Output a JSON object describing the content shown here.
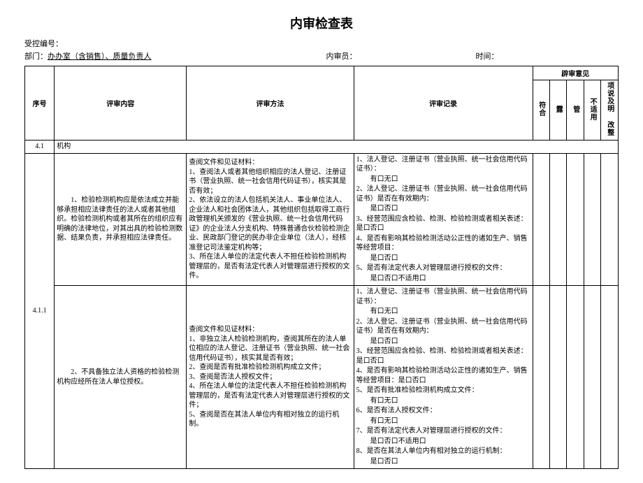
{
  "doc": {
    "title": "内审检查表",
    "control_no_label": "受控编号：",
    "dept_label": "部门：",
    "dept_value": "办办室（含销售）、质量负责人",
    "auditor_label": "内审员：",
    "time_label": "时间："
  },
  "columns": {
    "seq": "序号",
    "content": "评审内容",
    "method": "评审方法",
    "record": "评审记录",
    "opinion_group": "辟审意见",
    "op1": "符合",
    "op2": "露",
    "op3": "管",
    "op4": "不适用",
    "op5": "项说及明 改整"
  },
  "rows": {
    "section": {
      "seq": "4.1",
      "content": "机构"
    },
    "r1": {
      "seq": "4.1.1",
      "content": "　　1、检验检测机构应是依法成立并能够承担相应法律责任的法人或者其他组织。检验检测机构或者其所在的组织应有明确的法律地位，对其出具的检验检测数据、结果负责，并承担相应法律责任。",
      "method": "查阅文件和见证材料：\n1、查阅法人或者其他组织相应的法人登记、注册证书（营业执照、统一社会信用代码证书），核实其是否有效；\n2、依法设立的法人包括机关法人、事业单位法人、企业法人和社会团体法人，其他组织包括取得工商行政管理机关颁发的《营业执照、统一社会信用代码证》的企业法人分支机构、特殊普通合伙检验检测企业、民政部门登记的民办非企业单位（法人），经核准登记司法鉴定机构等；\n3、所在法人单位的法定代表人不担任检验检测机构管理层的，是否有法定代表人对管理层进行授权的文件。",
      "record_lines": [
        "1、法人登记、注册证书（营业执照、统一社会信用代码证书）：",
        "　　有口无口",
        "2、法人登记、注册证书（营业执照、统一社会信用代码证书）是否在有效期内：",
        "　　是口否口",
        "3、经营范围应含检验、检测、检验检测或者相关表述：是口否口",
        "4、是否有影响其检验检测活动公正性的诸如生产、销售等经营项目：",
        "　　是口否口",
        "5、是否有法定代表人对管理层进行授权的文件：",
        "　　是口否口不适用口"
      ]
    },
    "r2": {
      "content": "　　2、不具备独立法人资格的检验检测机构应经所在法人单位授权。",
      "method": "查阅文件和见证材料：\n1、非独立法人检验检测机构，查阅其所在的法人单位相应的法人登记、注册证书（营业执照、统一社会信用代码证书），核实其是否有效；\n2、查阅是否有批准检验检测机构成立文件；\n3、查阅是否法人授权文件；\n4、所在法人单位的法定代表人不担任检验检测机构管理层的，是否有法定代表人对管理层进行授权的文件；\n5、查阅是否在其法人单位内有相对独立的运行机制。",
      "record_lines": [
        "1、法人登记、注册证书（营业执照、统一社会信用代码证书）：",
        "　　有口无口",
        "2、法人登记、注册证书（营业执照、统一社会信用代码证书）是否在有效期内：",
        "　　是口否口",
        "3、经营范围应含检验、检测、检验检测或者相关表述：是口否口",
        "4、是否有影响其检验检测活动公正性的诸如生产、销售等经营项目：是口否口",
        "5、是否有批准检验检测机构成立文件：",
        "　　有口无口",
        "6、是否有法人授权文件：",
        "　　有口无口",
        "7、是否有法定代表人对管理层进行授权的文件：",
        "　　是口否口不适用口",
        "8、是否在其法人单位内有相对独立的运行机制：",
        "　　是口否口"
      ]
    }
  }
}
